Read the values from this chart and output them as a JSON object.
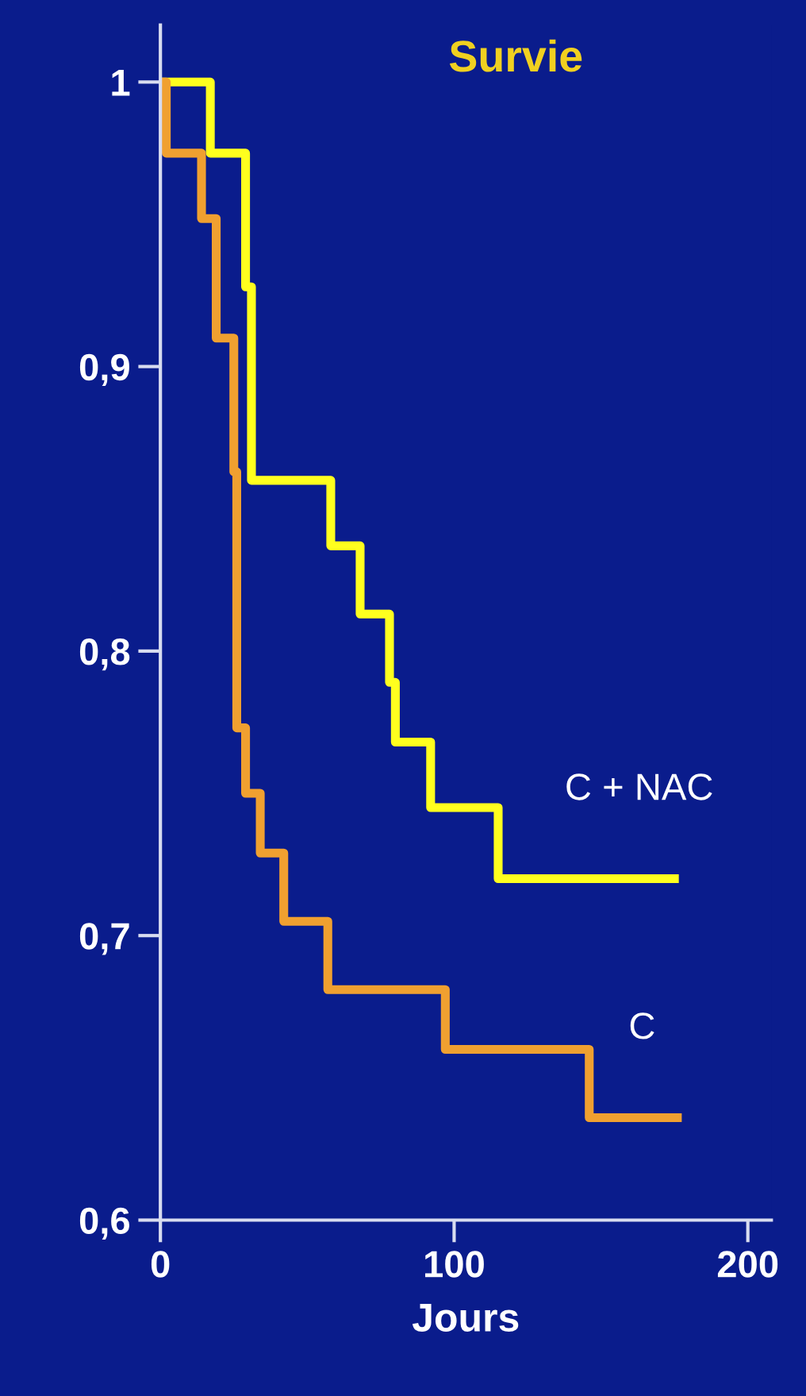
{
  "chart_data": {
    "type": "step",
    "title": "Survie",
    "xlabel": "Jours",
    "xlim": [
      0,
      208
    ],
    "xticks": [
      0,
      100,
      200
    ],
    "ylim": [
      0.6,
      1.02
    ],
    "yticks": [
      {
        "value": 0.6,
        "label": "0,6"
      },
      {
        "value": 0.7,
        "label": "0,7"
      },
      {
        "value": 0.8,
        "label": "0,8"
      },
      {
        "value": 0.9,
        "label": "0,9"
      },
      {
        "value": 1,
        "label": "1"
      }
    ],
    "grid": false,
    "legend": false,
    "series": [
      {
        "name": "C + NAC",
        "color": "#ffff1e",
        "x": [
          0,
          17,
          29,
          31,
          58,
          68,
          78,
          80,
          92,
          115,
          175
        ],
        "values": [
          1,
          0.975,
          0.928,
          0.86,
          0.837,
          0.813,
          0.789,
          0.768,
          0.745,
          0.72,
          0.72
        ]
      },
      {
        "name": "C",
        "color": "#f0a030",
        "x": [
          0,
          2,
          14,
          19,
          25,
          26,
          29,
          34,
          42,
          57,
          97,
          146,
          176
        ],
        "values": [
          1,
          0.975,
          0.952,
          0.91,
          0.863,
          0.773,
          0.75,
          0.729,
          0.705,
          0.681,
          0.66,
          0.636,
          0.636
        ]
      }
    ]
  }
}
